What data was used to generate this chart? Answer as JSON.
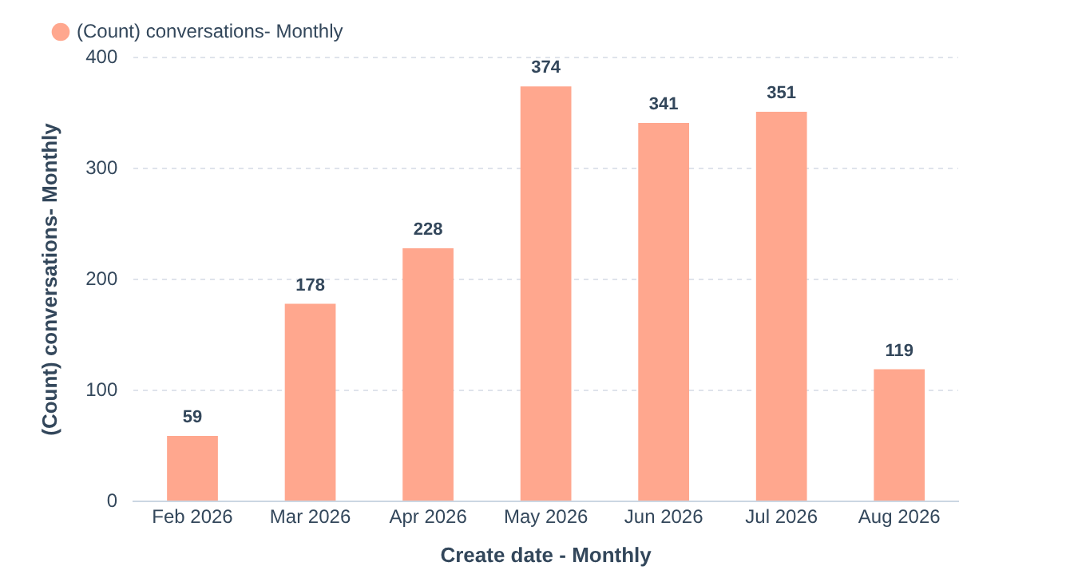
{
  "chart_data": {
    "type": "bar",
    "xlabel": "Create date - Monthly",
    "ylabel": "(Count) conversations- Monthly",
    "categories": [
      "Feb 2026",
      "Mar 2026",
      "Apr 2026",
      "May 2026",
      "Jun 2026",
      "Jul 2026",
      "Aug 2026"
    ],
    "series": [
      {
        "name": "(Count) conversations- Monthly",
        "color": "#ffa78e",
        "values": [
          59,
          178,
          228,
          374,
          341,
          351,
          119
        ]
      }
    ],
    "ylim": [
      0,
      400
    ],
    "yticks": [
      0,
      100,
      200,
      300,
      400
    ],
    "grid": "y",
    "legend": "top left",
    "data_labels": true
  }
}
